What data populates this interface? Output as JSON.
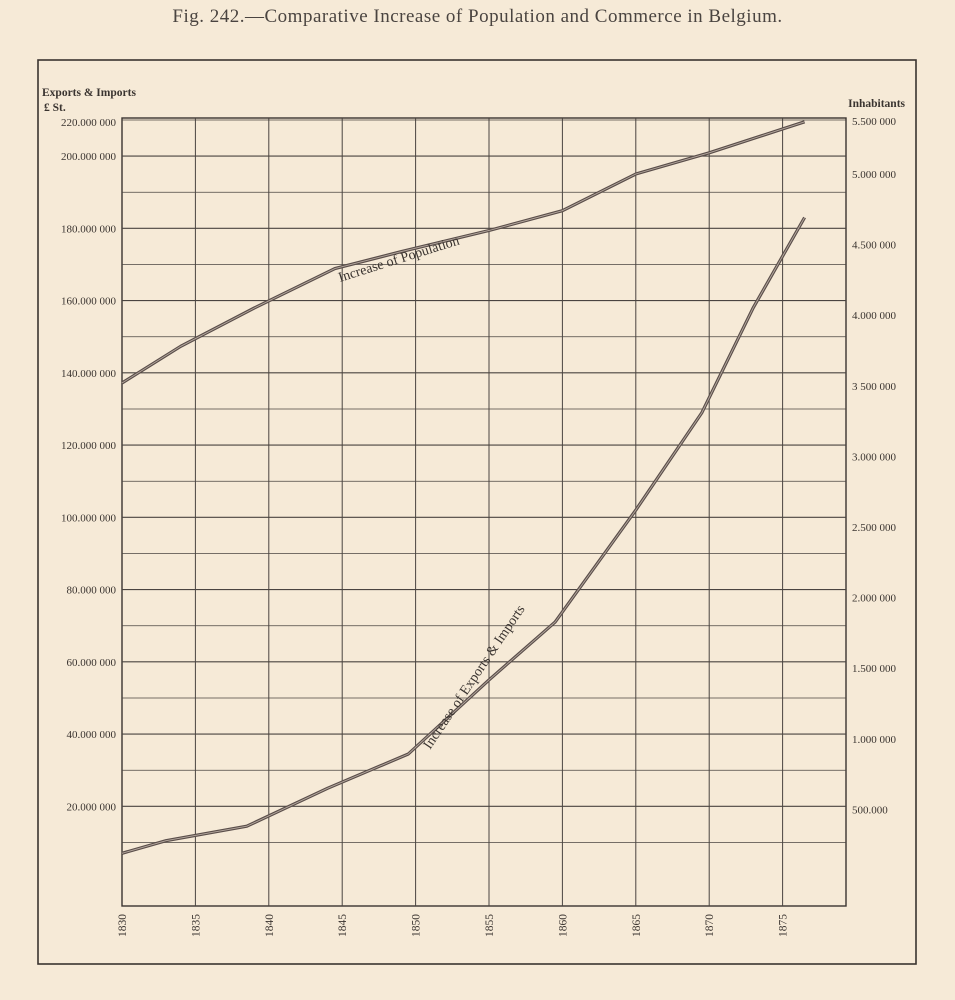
{
  "figure": {
    "title": "Fig. 242.—Comparative Increase of Population and Commerce in Belgium."
  },
  "colors": {
    "background": "#f6ead7",
    "ink": "#3a3430",
    "grid": "#4a4440",
    "series_line": "#5a4e4a"
  },
  "chart_data": {
    "type": "line",
    "title": "",
    "left_axis": {
      "label_line1": "Exports & Imports",
      "label_line2": "£ St.",
      "range": [
        0,
        220000000
      ],
      "ticks": [
        {
          "value": 20000000,
          "label": "20.000 000"
        },
        {
          "value": 40000000,
          "label": "40.000 000"
        },
        {
          "value": 60000000,
          "label": "60.000 000"
        },
        {
          "value": 80000000,
          "label": "80.000 000"
        },
        {
          "value": 100000000,
          "label": "100.000 000"
        },
        {
          "value": 120000000,
          "label": "120.000 000"
        },
        {
          "value": 140000000,
          "label": "140.000 000"
        },
        {
          "value": 160000000,
          "label": "160.000 000"
        },
        {
          "value": 180000000,
          "label": "180.000 000"
        },
        {
          "value": 200000000,
          "label": "200.000 000"
        },
        {
          "value": 220000000,
          "label": "220.000 000"
        }
      ]
    },
    "right_axis": {
      "label": "Inhabitants",
      "ticks": [
        {
          "value": 500000,
          "label": "500.000"
        },
        {
          "value": 1000000,
          "label": "1.000 000"
        },
        {
          "value": 1500000,
          "label": "1.500 000"
        },
        {
          "value": 2000000,
          "label": "2.000 000"
        },
        {
          "value": 2500000,
          "label": "2.500 000"
        },
        {
          "value": 3000000,
          "label": "3.000 000"
        },
        {
          "value": 3500000,
          "label": "3 500 000"
        },
        {
          "value": 4000000,
          "label": "4.000 000"
        },
        {
          "value": 4500000,
          "label": "4.500 000"
        },
        {
          "value": 5000000,
          "label": "5.000 000"
        },
        {
          "value": 5500000,
          "label": "5.500 000"
        }
      ]
    },
    "x_axis": {
      "range": [
        1830,
        1880
      ],
      "ticks": [
        "1830",
        "1835",
        "1840",
        "1845",
        "1850",
        "1855",
        "1860",
        "1865",
        "1870",
        "1875"
      ]
    },
    "grid": true,
    "series": [
      {
        "name": "Increase of Population",
        "axis": "right",
        "x": [
          1830,
          1834,
          1839,
          1844.5,
          1849,
          1855,
          1860,
          1865,
          1870,
          1876.5
        ],
        "y": [
          3520000,
          3780000,
          4050000,
          4330000,
          4450000,
          4600000,
          4740000,
          5000000,
          5150000,
          5370000
        ]
      },
      {
        "name": "Increase of Exports & Imports",
        "axis": "left",
        "x": [
          1830,
          1833,
          1838.5,
          1844,
          1849.5,
          1855,
          1859.5,
          1865,
          1869.5,
          1873,
          1876.5
        ],
        "y": [
          7000000,
          10500000,
          14500000,
          25000000,
          34500000,
          55000000,
          71000000,
          102000000,
          129000000,
          158000000,
          183000000
        ]
      }
    ]
  }
}
